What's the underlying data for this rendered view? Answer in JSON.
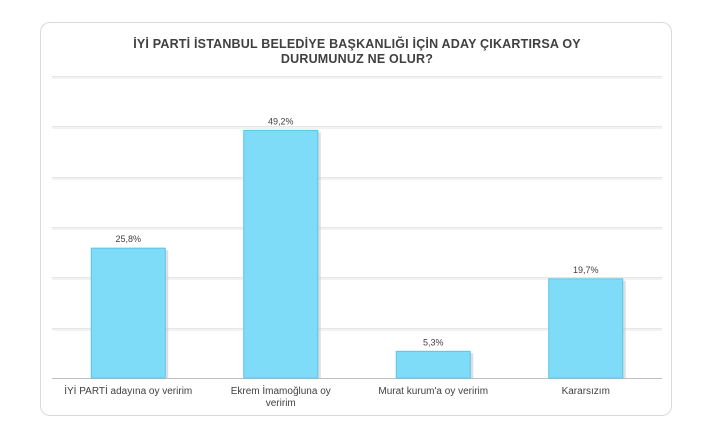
{
  "chart_data": {
    "type": "bar",
    "title_lines": [
      "İYİ PARTİ İSTANBUL BELEDİYE BAŞKANLIĞI İÇİN ADAY ÇIKARTIRSA OY",
      "DURUMUNUZ NE OLUR?"
    ],
    "categories": [
      [
        "İYİ PARTİ adayına oy veririm"
      ],
      [
        "Ekrem İmamoğluna oy",
        "veririm"
      ],
      [
        "Murat kurum'a oy veririm"
      ],
      [
        "Kararsızım"
      ]
    ],
    "values": [
      25.8,
      49.2,
      5.3,
      19.7
    ],
    "value_labels": [
      "25,8%",
      "49,2%",
      "5,3%",
      "19,7%"
    ],
    "ylim": [
      0,
      60
    ],
    "grid": true,
    "xlabel": "",
    "ylabel": "",
    "colors": {
      "bar_fill": "#7fdcf8",
      "bar_stroke": "#5ac4e6",
      "bar_shadow": "#c8c8c8",
      "grid": "#e6e6e6",
      "axis": "#bfbfbf",
      "text": "#404040"
    }
  }
}
